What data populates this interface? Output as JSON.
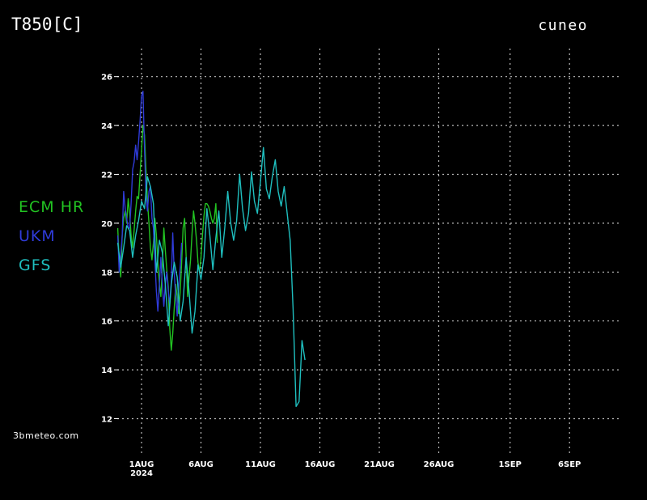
{
  "header": {
    "variable": "T850[C]",
    "location": "cuneo"
  },
  "credit": "3bmeteo.com",
  "chart_data": {
    "type": "line",
    "ylim": [
      11.5,
      26.5
    ],
    "yticks": [
      12,
      14,
      16,
      18,
      20,
      22,
      24,
      26
    ],
    "xlim_days": [
      -4,
      38
    ],
    "xticks": [
      {
        "day": 0,
        "label": "1AUG",
        "sublabel": "2024"
      },
      {
        "day": 5,
        "label": "6AUG",
        "sublabel": ""
      },
      {
        "day": 10,
        "label": "11AUG",
        "sublabel": ""
      },
      {
        "day": 15,
        "label": "16AUG",
        "sublabel": ""
      },
      {
        "day": 20,
        "label": "21AUG",
        "sublabel": ""
      },
      {
        "day": 25,
        "label": "26AUG",
        "sublabel": ""
      },
      {
        "day": 31,
        "label": "1SEP",
        "sublabel": ""
      },
      {
        "day": 36,
        "label": "6SEP",
        "sublabel": ""
      }
    ],
    "grid": true,
    "legend_position": "left",
    "series": [
      {
        "name": "ECM HR",
        "color": "#22c322",
        "step_days": 0.125,
        "start_day": -2,
        "values": [
          19.8,
          18.4,
          17.8,
          19.5,
          20.2,
          20.5,
          20.0,
          21.0,
          20.4,
          19.5,
          19.0,
          19.7,
          20.5,
          21.1,
          21.0,
          22.0,
          23.0,
          24.0,
          23.6,
          22.2,
          20.9,
          20.0,
          19.0,
          18.5,
          19.2,
          20.2,
          19.5,
          18.4,
          17.5,
          17.0,
          18.2,
          19.8,
          18.9,
          18.1,
          17.4,
          15.7,
          14.8,
          15.5,
          16.5,
          17.5,
          17.0,
          16.3,
          17.2,
          18.4,
          19.8,
          20.2,
          18.7,
          17.0,
          17.8,
          18.5,
          19.6,
          20.5,
          20.0,
          19.3,
          18.4,
          18.0,
          18.6,
          19.5,
          20.3,
          20.8,
          20.8,
          20.7,
          20.5,
          20.2,
          20.0,
          20.2,
          20.8,
          19.2
        ]
      },
      {
        "name": "UKM",
        "color": "#2f3bd8",
        "step_days": 0.125,
        "start_day": -2,
        "values": [
          19.5,
          18.0,
          18.7,
          19.5,
          21.3,
          20.6,
          20.2,
          19.8,
          19.8,
          20.8,
          22.2,
          22.5,
          23.2,
          22.6,
          23.3,
          24.2,
          25.2,
          25.4,
          23.0,
          21.2,
          20.5,
          21.3,
          21.5,
          20.2,
          19.8,
          18.5,
          17.2,
          16.4,
          17.5,
          18.6,
          17.5,
          16.6,
          17.5,
          18.0,
          17.2,
          16.7,
          17.6,
          19.6,
          18.0,
          17.0,
          16.2,
          17.4,
          18.2,
          19.2
        ]
      },
      {
        "name": "GFS",
        "color": "#1fbfbf",
        "step_days": 0.25,
        "start_day": -2,
        "values": [
          19.2,
          18.2,
          19.0,
          19.9,
          19.7,
          18.6,
          19.5,
          20.1,
          20.9,
          20.6,
          21.9,
          21.5,
          20.8,
          18.0,
          19.3,
          18.8,
          17.5,
          15.8,
          17.5,
          18.4,
          17.8,
          16.0,
          16.8,
          18.6,
          17.2,
          15.5,
          16.4,
          18.3,
          17.7,
          18.6,
          20.6,
          19.5,
          18.1,
          19.4,
          20.5,
          18.6,
          19.8,
          21.3,
          20.0,
          19.3,
          20.1,
          22.0,
          20.6,
          19.7,
          20.4,
          22.1,
          20.9,
          20.4,
          21.7,
          23.1,
          21.4,
          21.0,
          21.9,
          22.6,
          21.3,
          20.7,
          21.5,
          20.4,
          19.3,
          16.5,
          12.5,
          12.7,
          15.2,
          14.4
        ]
      }
    ]
  }
}
